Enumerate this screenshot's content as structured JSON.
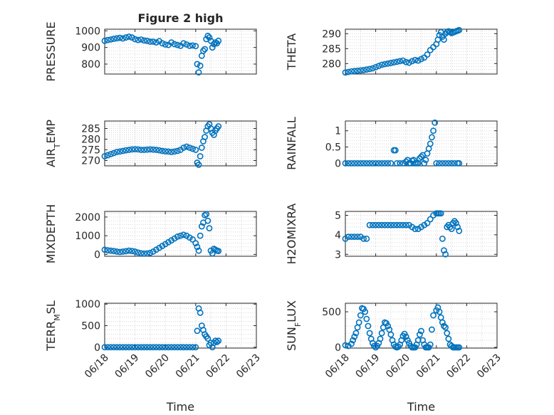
{
  "figure": {
    "title": "Figure 2 high",
    "marker_color": "#0072BD",
    "x_common_label": "Time"
  },
  "chart_data": [
    {
      "id": "pressure",
      "type": "scatter",
      "title": "Figure 2 high",
      "ylabel": "PRESSURE",
      "xlabel": "",
      "xlim": [
        0,
        5
      ],
      "ylim": [
        740,
        1010
      ],
      "yticks": [
        800,
        900,
        1000
      ],
      "xticks": [],
      "xticklabels": [],
      "series": [
        {
          "x": [
            0.0,
            0.1,
            0.2,
            0.3,
            0.4,
            0.5,
            0.6,
            0.7,
            0.8,
            0.9,
            1.0,
            1.1,
            1.2,
            1.3,
            1.4,
            1.5,
            1.6,
            1.7,
            1.8,
            1.9,
            2.0,
            2.1,
            2.2,
            2.3,
            2.4,
            2.5,
            2.6,
            2.7,
            2.8,
            2.9,
            3.0,
            3.05,
            3.1,
            3.15,
            3.2,
            3.25,
            3.3,
            3.35,
            3.4,
            3.45,
            3.5,
            3.55,
            3.6,
            3.65,
            3.7,
            3.75
          ],
          "y": [
            940,
            945,
            948,
            952,
            955,
            958,
            954,
            960,
            965,
            960,
            950,
            945,
            948,
            942,
            940,
            935,
            935,
            930,
            938,
            925,
            918,
            915,
            930,
            920,
            915,
            910,
            925,
            918,
            910,
            912,
            908,
            800,
            750,
            790,
            850,
            880,
            890,
            950,
            970,
            960,
            940,
            900,
            920,
            930,
            925,
            940
          ]
        }
      ]
    },
    {
      "id": "theta",
      "type": "scatter",
      "ylabel": "THETA",
      "xlabel": "",
      "xlim": [
        0,
        5
      ],
      "ylim": [
        276.5,
        291.5
      ],
      "yticks": [
        280,
        285,
        290
      ],
      "xticks": [],
      "xticklabels": [],
      "series": [
        {
          "x": [
            0.0,
            0.1,
            0.2,
            0.3,
            0.4,
            0.5,
            0.6,
            0.7,
            0.8,
            0.9,
            1.0,
            1.1,
            1.2,
            1.3,
            1.4,
            1.5,
            1.6,
            1.7,
            1.8,
            1.9,
            2.0,
            2.1,
            2.2,
            2.3,
            2.4,
            2.5,
            2.6,
            2.7,
            2.8,
            2.9,
            3.0,
            3.05,
            3.1,
            3.15,
            3.2,
            3.25,
            3.3,
            3.35,
            3.4,
            3.45,
            3.5,
            3.55,
            3.6,
            3.65,
            3.7,
            3.75
          ],
          "y": [
            277,
            277.2,
            277.4,
            277.5,
            277.6,
            277.7,
            277.8,
            278,
            278.2,
            278.4,
            278.8,
            279.2,
            279.6,
            279.8,
            280,
            280.2,
            280.4,
            280.6,
            280.8,
            281,
            280.5,
            280.3,
            280.8,
            281.2,
            281,
            281.5,
            282,
            283,
            284.5,
            285.5,
            286.5,
            288,
            289.5,
            290.5,
            289,
            288,
            290,
            290.5,
            290.8,
            290.5,
            290.2,
            290.4,
            290.6,
            290.8,
            291,
            291.2
          ]
        }
      ]
    },
    {
      "id": "air_temp",
      "type": "scatter",
      "ylabel": "AIR_TEMP",
      "xlabel": "",
      "xlim": [
        0,
        5
      ],
      "ylim": [
        267.5,
        288.5
      ],
      "yticks": [
        270,
        275,
        280,
        285
      ],
      "xticks": [],
      "xticklabels": [],
      "series": [
        {
          "x": [
            0.0,
            0.1,
            0.2,
            0.3,
            0.4,
            0.5,
            0.6,
            0.7,
            0.8,
            0.9,
            1.0,
            1.1,
            1.2,
            1.3,
            1.4,
            1.5,
            1.6,
            1.7,
            1.8,
            1.9,
            2.0,
            2.1,
            2.2,
            2.3,
            2.4,
            2.5,
            2.6,
            2.7,
            2.8,
            2.9,
            3.0,
            3.05,
            3.1,
            3.15,
            3.2,
            3.25,
            3.3,
            3.35,
            3.4,
            3.45,
            3.5,
            3.55,
            3.6,
            3.65,
            3.7,
            3.75
          ],
          "y": [
            272,
            272.5,
            273,
            273.5,
            274,
            274.2,
            274.5,
            274.8,
            275,
            275.2,
            275.3,
            275.2,
            275,
            275,
            275.1,
            275.2,
            275.1,
            275,
            274.8,
            274.5,
            274.3,
            274.2,
            274,
            274.2,
            274.5,
            275,
            276,
            276.5,
            276,
            275.5,
            275,
            269,
            268,
            272,
            276,
            279,
            281,
            284,
            286,
            287,
            285,
            283,
            282,
            284,
            285,
            286
          ]
        }
      ]
    },
    {
      "id": "rainfall",
      "type": "scatter",
      "ylabel": "RAINFALL",
      "xlabel": "",
      "xlim": [
        0,
        5
      ],
      "ylim": [
        -0.08,
        1.3
      ],
      "yticks": [
        0,
        0.5,
        1
      ],
      "xticks": [],
      "xticklabels": [],
      "series": [
        {
          "x": [
            0.0,
            0.1,
            0.2,
            0.3,
            0.4,
            0.5,
            0.6,
            0.7,
            0.8,
            0.9,
            1.0,
            1.1,
            1.2,
            1.3,
            1.4,
            1.5,
            1.6,
            1.65,
            1.7,
            1.8,
            1.9,
            2.0,
            2.05,
            2.1,
            2.15,
            2.2,
            2.25,
            2.3,
            2.35,
            2.4,
            2.45,
            2.5,
            2.55,
            2.6,
            2.65,
            2.7,
            2.75,
            2.8,
            2.85,
            2.9,
            2.95,
            3.0,
            3.1,
            3.2,
            3.3,
            3.4,
            3.5,
            3.6,
            3.7,
            3.75
          ],
          "y": [
            0,
            0,
            0,
            0,
            0,
            0,
            0,
            0,
            0,
            0,
            0,
            0,
            0,
            0,
            0,
            0,
            0.4,
            0.4,
            0,
            0,
            0,
            0.05,
            0.1,
            0,
            0,
            0.08,
            0.1,
            0,
            0,
            0,
            0.15,
            0.2,
            0.25,
            0,
            0.1,
            0.3,
            0.45,
            0.6,
            0.8,
            1.0,
            1.25,
            0,
            0,
            0,
            0,
            0,
            0,
            0,
            0,
            0
          ]
        }
      ]
    },
    {
      "id": "mixdepth",
      "type": "scatter",
      "ylabel": "MIXDEPTH",
      "xlabel": "",
      "xlim": [
        0,
        5
      ],
      "ylim": [
        -100,
        2300
      ],
      "yticks": [
        0,
        1000,
        2000
      ],
      "xticks": [],
      "xticklabels": [],
      "series": [
        {
          "x": [
            0.0,
            0.1,
            0.2,
            0.3,
            0.4,
            0.5,
            0.6,
            0.7,
            0.8,
            0.9,
            1.0,
            1.1,
            1.2,
            1.3,
            1.4,
            1.5,
            1.6,
            1.7,
            1.8,
            1.9,
            2.0,
            2.1,
            2.2,
            2.3,
            2.4,
            2.5,
            2.6,
            2.7,
            2.8,
            2.9,
            3.0,
            3.05,
            3.1,
            3.15,
            3.2,
            3.25,
            3.3,
            3.35,
            3.4,
            3.45,
            3.5,
            3.55,
            3.6,
            3.65,
            3.7,
            3.75
          ],
          "y": [
            250,
            220,
            200,
            180,
            150,
            130,
            150,
            170,
            200,
            180,
            150,
            100,
            60,
            40,
            50,
            80,
            150,
            250,
            350,
            450,
            550,
            650,
            750,
            850,
            950,
            1000,
            1050,
            1000,
            900,
            800,
            600,
            400,
            200,
            1000,
            1500,
            1700,
            2100,
            2150,
            1800,
            1400,
            200,
            50,
            300,
            250,
            200,
            180
          ]
        }
      ]
    },
    {
      "id": "h2omixra",
      "type": "scatter",
      "ylabel": "H2OMIXRA",
      "xlabel": "",
      "xlim": [
        0,
        5
      ],
      "ylim": [
        2.9,
        5.2
      ],
      "yticks": [
        3,
        4,
        5
      ],
      "xticks": [],
      "xticklabels": [],
      "series": [
        {
          "x": [
            0.0,
            0.1,
            0.2,
            0.3,
            0.4,
            0.5,
            0.6,
            0.7,
            0.8,
            0.9,
            1.0,
            1.1,
            1.2,
            1.3,
            1.4,
            1.5,
            1.6,
            1.7,
            1.8,
            1.9,
            2.0,
            2.1,
            2.2,
            2.3,
            2.4,
            2.5,
            2.6,
            2.7,
            2.8,
            2.9,
            3.0,
            3.05,
            3.1,
            3.15,
            3.2,
            3.25,
            3.3,
            3.35,
            3.4,
            3.45,
            3.5,
            3.55,
            3.6,
            3.65,
            3.7,
            3.75
          ],
          "y": [
            3.8,
            3.9,
            3.9,
            3.9,
            3.9,
            3.9,
            3.8,
            3.8,
            4.5,
            4.5,
            4.5,
            4.5,
            4.5,
            4.5,
            4.5,
            4.5,
            4.5,
            4.5,
            4.5,
            4.5,
            4.5,
            4.5,
            4.4,
            4.3,
            4.3,
            4.4,
            4.5,
            4.6,
            4.8,
            5.0,
            5.1,
            5.1,
            5.1,
            5.1,
            3.8,
            3.2,
            3.0,
            4.4,
            4.5,
            4.4,
            4.3,
            4.6,
            4.7,
            4.6,
            4.4,
            4.2
          ]
        }
      ]
    },
    {
      "id": "terr_msl",
      "type": "scatter",
      "ylabel": "TERR_MSL",
      "xlabel": "Time",
      "xlim": [
        0,
        5
      ],
      "ylim": [
        -20,
        1020
      ],
      "yticks": [
        0,
        500,
        1000
      ],
      "xticks": [
        0,
        1,
        2,
        3,
        4,
        5
      ],
      "xticklabels": [
        "06/18",
        "06/19",
        "06/20",
        "06/21",
        "06/22",
        "06/23"
      ],
      "series": [
        {
          "x": [
            0.0,
            0.1,
            0.2,
            0.3,
            0.4,
            0.5,
            0.6,
            0.7,
            0.8,
            0.9,
            1.0,
            1.1,
            1.2,
            1.3,
            1.4,
            1.5,
            1.6,
            1.7,
            1.8,
            1.9,
            2.0,
            2.1,
            2.2,
            2.3,
            2.4,
            2.5,
            2.6,
            2.7,
            2.8,
            2.9,
            3.0,
            3.05,
            3.1,
            3.15,
            3.2,
            3.25,
            3.3,
            3.35,
            3.4,
            3.45,
            3.5,
            3.55,
            3.6,
            3.65,
            3.7,
            3.75
          ],
          "y": [
            0,
            0,
            0,
            0,
            0,
            0,
            0,
            0,
            0,
            0,
            0,
            0,
            0,
            0,
            0,
            0,
            0,
            0,
            0,
            0,
            0,
            0,
            0,
            0,
            0,
            0,
            0,
            0,
            0,
            0,
            0,
            380,
            900,
            800,
            500,
            400,
            300,
            250,
            200,
            50,
            100,
            0,
            100,
            150,
            120,
            150
          ]
        }
      ]
    },
    {
      "id": "sun_flux",
      "type": "scatter",
      "ylabel": "SUN_FLUX",
      "xlabel": "Time",
      "xlim": [
        0,
        5
      ],
      "ylim": [
        -10,
        620
      ],
      "yticks": [
        0,
        500
      ],
      "xticks": [
        0,
        1,
        2,
        3,
        4,
        5
      ],
      "xticklabels": [
        "06/18",
        "06/19",
        "06/20",
        "06/21",
        "06/22",
        "06/23"
      ],
      "series": [
        {
          "x": [
            0.0,
            0.1,
            0.2,
            0.25,
            0.3,
            0.35,
            0.4,
            0.45,
            0.5,
            0.55,
            0.6,
            0.65,
            0.7,
            0.75,
            0.8,
            0.85,
            0.9,
            0.95,
            1.0,
            1.05,
            1.1,
            1.15,
            1.2,
            1.25,
            1.3,
            1.35,
            1.4,
            1.45,
            1.5,
            1.55,
            1.6,
            1.65,
            1.7,
            1.75,
            1.8,
            1.85,
            1.9,
            1.95,
            2.0,
            2.05,
            2.1,
            2.15,
            2.2,
            2.25,
            2.3,
            2.35,
            2.4,
            2.45,
            2.5,
            2.55,
            2.6,
            2.65,
            2.7,
            2.75,
            2.8,
            2.85,
            2.9,
            3.0,
            3.05,
            3.1,
            3.15,
            3.2,
            3.25,
            3.3,
            3.35,
            3.4,
            3.45,
            3.5,
            3.55,
            3.6,
            3.65,
            3.7,
            3.75
          ],
          "y": [
            30,
            20,
            50,
            100,
            150,
            200,
            280,
            350,
            450,
            550,
            540,
            500,
            400,
            300,
            200,
            120,
            60,
            20,
            0,
            20,
            60,
            120,
            200,
            280,
            350,
            340,
            300,
            250,
            180,
            100,
            40,
            10,
            0,
            10,
            40,
            100,
            160,
            190,
            150,
            100,
            60,
            20,
            0,
            0,
            0,
            40,
            100,
            180,
            230,
            100,
            40,
            0,
            0,
            0,
            40,
            250,
            450,
            520,
            560,
            500,
            420,
            350,
            300,
            280,
            200,
            120,
            40,
            20,
            0,
            0,
            0,
            0,
            0
          ]
        }
      ]
    }
  ]
}
